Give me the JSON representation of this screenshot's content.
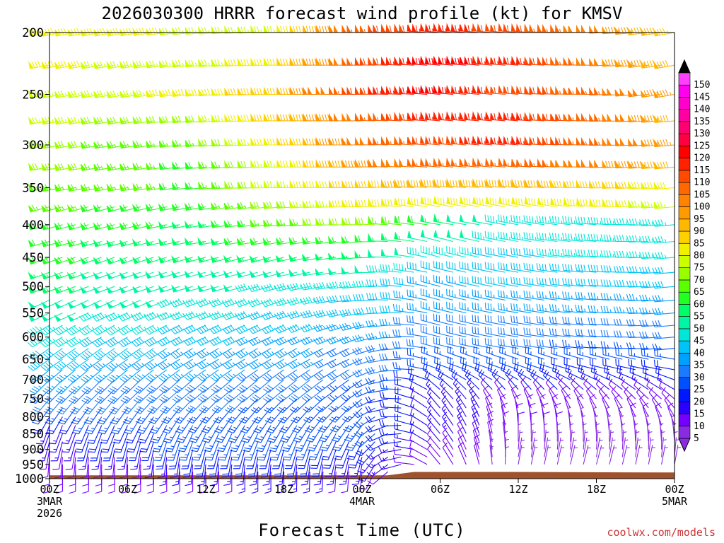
{
  "chart_data": {
    "type": "wind-barb-time-height",
    "title": "2026030300 HRRR forecast wind profile (kt) for KMSV",
    "xlabel": "Forecast Time (UTC)",
    "ylabel": "",
    "units": "kt",
    "y_axis": {
      "ticks": [
        "200",
        "250",
        "300",
        "350",
        "400",
        "450",
        "500",
        "550",
        "600",
        "650",
        "700",
        "750",
        "800",
        "850",
        "900",
        "950",
        "1000"
      ],
      "range": [
        200,
        1000
      ]
    },
    "x_axis": {
      "ticks": [
        {
          "line1": "00Z",
          "line2": "3MAR",
          "line3": "2026"
        },
        {
          "line1": "06Z",
          "line2": "",
          "line3": ""
        },
        {
          "line1": "12Z",
          "line2": "",
          "line3": ""
        },
        {
          "line1": "18Z",
          "line2": "",
          "line3": ""
        },
        {
          "line1": "00Z",
          "line2": "4MAR",
          "line3": ""
        },
        {
          "line1": "06Z",
          "line2": "",
          "line3": ""
        },
        {
          "line1": "12Z",
          "line2": "",
          "line3": ""
        },
        {
          "line1": "18Z",
          "line2": "",
          "line3": ""
        },
        {
          "line1": "00Z",
          "line2": "5MAR",
          "line3": ""
        }
      ],
      "range_hours": [
        0,
        48
      ]
    },
    "colorbar": {
      "ticks": [
        "5",
        "10",
        "15",
        "20",
        "25",
        "30",
        "35",
        "40",
        "45",
        "50",
        "55",
        "60",
        "65",
        "70",
        "75",
        "80",
        "85",
        "90",
        "95",
        "100",
        "105",
        "110",
        "115",
        "120",
        "125",
        "130",
        "135",
        "140",
        "145",
        "150"
      ],
      "colors": [
        "#8a2be2",
        "#7400ff",
        "#2a00ff",
        "#0018ff",
        "#0050ff",
        "#1a7bff",
        "#00a0ff",
        "#00c4f5",
        "#00e6d8",
        "#00f5a5",
        "#00ff66",
        "#22ff22",
        "#5aff00",
        "#99ff00",
        "#ccff00",
        "#f0f000",
        "#ffd000",
        "#ffb800",
        "#ff9a00",
        "#ff8200",
        "#ff6800",
        "#ff4a00",
        "#ff2200",
        "#ff0000",
        "#ff0040",
        "#ff0070",
        "#ff00a0",
        "#ff00cc",
        "#ff00ee",
        "#ff40ff"
      ]
    },
    "terrain_color": "#a0522d",
    "levels": [
      200,
      225,
      250,
      275,
      300,
      325,
      350,
      375,
      400,
      425,
      450,
      475,
      500,
      525,
      550,
      575,
      600,
      625,
      650,
      675,
      700,
      725,
      750,
      775,
      800,
      825,
      850,
      875,
      900,
      925,
      950,
      975,
      1000
    ],
    "hours": [
      0,
      6,
      12,
      18,
      24,
      30,
      36,
      42,
      48
    ],
    "speed_kt": [
      [
        80,
        80,
        75,
        75,
        105,
        115,
        110,
        100,
        85
      ],
      [
        80,
        75,
        75,
        80,
        105,
        120,
        115,
        100,
        90
      ],
      [
        75,
        75,
        80,
        85,
        110,
        120,
        110,
        105,
        95
      ],
      [
        75,
        70,
        70,
        85,
        100,
        115,
        115,
        105,
        90
      ],
      [
        70,
        65,
        65,
        80,
        100,
        110,
        115,
        105,
        95
      ],
      [
        70,
        65,
        60,
        75,
        95,
        105,
        105,
        100,
        90
      ],
      [
        65,
        65,
        60,
        75,
        85,
        90,
        90,
        85,
        80
      ],
      [
        65,
        60,
        60,
        70,
        80,
        80,
        80,
        80,
        75
      ],
      [
        60,
        60,
        55,
        65,
        70,
        55,
        45,
        45,
        45
      ],
      [
        60,
        55,
        55,
        60,
        60,
        50,
        45,
        45,
        45
      ],
      [
        60,
        55,
        55,
        55,
        55,
        45,
        40,
        45,
        45
      ],
      [
        55,
        50,
        50,
        50,
        50,
        40,
        40,
        40,
        40
      ],
      [
        55,
        50,
        50,
        45,
        45,
        35,
        40,
        40,
        40
      ],
      [
        50,
        50,
        45,
        45,
        40,
        35,
        35,
        35,
        35
      ],
      [
        50,
        45,
        45,
        40,
        40,
        35,
        35,
        35,
        35
      ],
      [
        45,
        45,
        40,
        40,
        35,
        30,
        30,
        30,
        30
      ],
      [
        45,
        40,
        40,
        35,
        35,
        30,
        30,
        30,
        30
      ],
      [
        40,
        40,
        35,
        35,
        30,
        30,
        30,
        25,
        25
      ],
      [
        40,
        35,
        35,
        35,
        30,
        25,
        25,
        25,
        25
      ],
      [
        35,
        35,
        35,
        30,
        30,
        25,
        25,
        20,
        20
      ],
      [
        35,
        30,
        30,
        30,
        25,
        20,
        20,
        20,
        20
      ],
      [
        30,
        30,
        30,
        30,
        25,
        20,
        20,
        15,
        15
      ],
      [
        30,
        30,
        30,
        25,
        25,
        15,
        10,
        10,
        10
      ],
      [
        25,
        25,
        25,
        25,
        25,
        15,
        10,
        10,
        10
      ],
      [
        20,
        25,
        25,
        25,
        25,
        15,
        10,
        10,
        10
      ],
      [
        15,
        20,
        25,
        25,
        25,
        15,
        10,
        5,
        10
      ],
      [
        15,
        20,
        25,
        25,
        25,
        15,
        10,
        5,
        5
      ],
      [
        15,
        20,
        25,
        25,
        20,
        15,
        5,
        5,
        5
      ],
      [
        10,
        15,
        20,
        20,
        20,
        10,
        5,
        5,
        5
      ],
      [
        10,
        10,
        20,
        20,
        15,
        10,
        5,
        5,
        5
      ],
      [
        10,
        10,
        15,
        15,
        15,
        10,
        5,
        5,
        5
      ],
      [
        10,
        10,
        10,
        15,
        10,
        10,
        5,
        5,
        5
      ],
      [
        5,
        10,
        10,
        10,
        10,
        5,
        5,
        5,
        5
      ]
    ],
    "dir_deg": [
      [
        260,
        260,
        265,
        270,
        270,
        275,
        275,
        270,
        260
      ],
      [
        260,
        260,
        265,
        270,
        270,
        275,
        275,
        270,
        260
      ],
      [
        260,
        260,
        265,
        270,
        270,
        275,
        275,
        270,
        260
      ],
      [
        260,
        260,
        265,
        270,
        270,
        275,
        275,
        270,
        265
      ],
      [
        260,
        260,
        265,
        270,
        270,
        275,
        275,
        270,
        265
      ],
      [
        260,
        260,
        265,
        270,
        270,
        275,
        275,
        270,
        265
      ],
      [
        260,
        260,
        265,
        270,
        270,
        275,
        275,
        270,
        265
      ],
      [
        255,
        255,
        260,
        265,
        270,
        280,
        280,
        275,
        265
      ],
      [
        255,
        255,
        260,
        265,
        270,
        280,
        280,
        275,
        265
      ],
      [
        255,
        255,
        260,
        260,
        265,
        285,
        280,
        275,
        265
      ],
      [
        250,
        250,
        255,
        255,
        265,
        285,
        280,
        275,
        265
      ],
      [
        250,
        250,
        255,
        255,
        265,
        285,
        280,
        275,
        265
      ],
      [
        250,
        250,
        255,
        255,
        265,
        285,
        280,
        275,
        265
      ],
      [
        245,
        245,
        250,
        250,
        265,
        285,
        280,
        275,
        265
      ],
      [
        245,
        245,
        250,
        250,
        260,
        285,
        280,
        275,
        265
      ],
      [
        240,
        240,
        245,
        245,
        255,
        285,
        280,
        275,
        265
      ],
      [
        240,
        240,
        245,
        245,
        250,
        285,
        280,
        275,
        265
      ],
      [
        235,
        235,
        240,
        240,
        245,
        285,
        280,
        275,
        265
      ],
      [
        235,
        235,
        240,
        240,
        245,
        290,
        290,
        285,
        280
      ],
      [
        230,
        230,
        235,
        235,
        240,
        290,
        290,
        285,
        280
      ],
      [
        225,
        225,
        230,
        230,
        235,
        300,
        300,
        295,
        290
      ],
      [
        225,
        225,
        230,
        230,
        235,
        310,
        320,
        310,
        300
      ],
      [
        220,
        220,
        225,
        225,
        230,
        315,
        330,
        320,
        310
      ],
      [
        215,
        215,
        220,
        220,
        225,
        320,
        340,
        330,
        320
      ],
      [
        210,
        210,
        215,
        215,
        220,
        320,
        350,
        340,
        330
      ],
      [
        200,
        205,
        210,
        210,
        215,
        320,
        355,
        350,
        340
      ],
      [
        200,
        200,
        205,
        205,
        210,
        320,
        0,
        355,
        350
      ],
      [
        195,
        195,
        200,
        200,
        205,
        320,
        0,
        0,
        355
      ],
      [
        190,
        190,
        195,
        195,
        200,
        320,
        5,
        5,
        0
      ],
      [
        185,
        185,
        190,
        190,
        195,
        320,
        10,
        10,
        5
      ],
      [
        180,
        180,
        185,
        185,
        190,
        320,
        10,
        15,
        10
      ],
      [
        180,
        180,
        180,
        180,
        185,
        320,
        15,
        15,
        15
      ],
      [
        180,
        180,
        180,
        180,
        180,
        320,
        15,
        20,
        20
      ]
    ]
  },
  "credit": "coolwx.com/models"
}
